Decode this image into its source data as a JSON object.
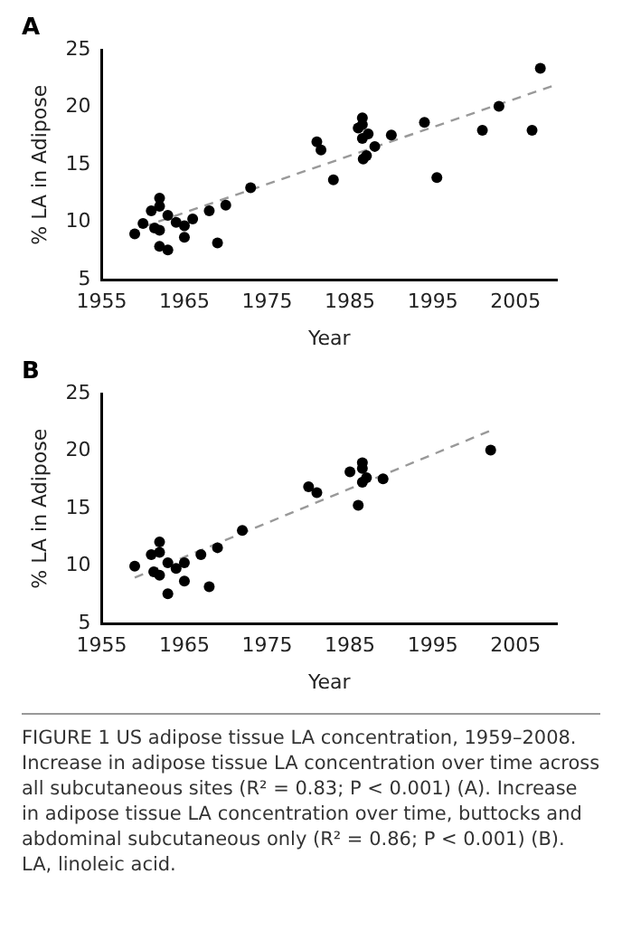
{
  "chart_data": [
    {
      "type": "scatter",
      "title": "A",
      "xlabel": "Year",
      "ylabel": "% LA in Adipose",
      "xlim": [
        1955,
        2010
      ],
      "xticks": [
        1955,
        1965,
        1975,
        1985,
        1995,
        2005
      ],
      "ylim": [
        5,
        25
      ],
      "yticks": [
        5,
        10,
        15,
        20,
        25
      ],
      "grid": false,
      "legend": false,
      "marker": "circle",
      "series": [
        {
          "color": "#000000",
          "x": [
            1959,
            1960,
            1961,
            1961.4,
            1962,
            1962,
            1962,
            1962,
            1963,
            1963,
            1964,
            1965,
            1965,
            1966,
            1968,
            1969,
            1970,
            1973,
            1981,
            1981.5,
            1983,
            1986,
            1986.5,
            1986.5,
            1986.5,
            1986.6,
            1987,
            1987.2,
            1988,
            1990,
            1994,
            1995.5,
            2001,
            2003,
            2007,
            2008
          ],
          "values": [
            9.0,
            9.9,
            11.0,
            9.5,
            12.1,
            11.4,
            9.3,
            7.9,
            10.6,
            7.6,
            10.0,
            9.7,
            8.7,
            10.3,
            11.0,
            8.2,
            11.5,
            13.0,
            17.0,
            16.3,
            13.7,
            18.2,
            19.1,
            18.5,
            17.3,
            15.5,
            15.8,
            17.7,
            16.6,
            17.6,
            18.7,
            13.9,
            18.0,
            20.1,
            18.0,
            23.4
          ]
        },
        {
          "type": "line",
          "color": "#999999",
          "line_style": "dashed",
          "marker": "none",
          "x": [
            1960,
            2010
          ],
          "values": [
            9.6,
            22.0
          ]
        }
      ]
    },
    {
      "type": "scatter",
      "title": "B",
      "xlabel": "Year",
      "ylabel": "% LA in Adipose",
      "xlim": [
        1955,
        2010
      ],
      "xticks": [
        1955,
        1965,
        1975,
        1985,
        1995,
        2005
      ],
      "ylim": [
        5,
        25
      ],
      "yticks": [
        5,
        10,
        15,
        20,
        25
      ],
      "grid": false,
      "legend": false,
      "marker": "circle",
      "annotations": [
        "FIGURE 1   US adipose tissue LA concentration, 1959–2008. Increase in adipose tissue LA concentration over time across all subcutaneous sites (R² = 0.83; P < 0.001) (A). Increase in adipose tissue LA concentration over time, buttocks and abdominal subcutaneous only (R² = 0.86; P < 0.001) (B). LA, linoleic acid."
      ],
      "series": [
        {
          "color": "#000000",
          "x": [
            1959,
            1961,
            1961.3,
            1962,
            1962,
            1962,
            1963,
            1963,
            1964,
            1965,
            1965,
            1967,
            1968,
            1969,
            1972,
            1980,
            1981,
            1985,
            1986.5,
            1986.5,
            1986,
            1986.5,
            1987,
            1989,
            2002
          ],
          "values": [
            10.0,
            11.0,
            9.5,
            12.1,
            11.2,
            9.2,
            10.3,
            7.6,
            9.8,
            10.3,
            8.7,
            11.0,
            8.2,
            11.6,
            13.1,
            16.9,
            16.4,
            18.2,
            19.0,
            18.5,
            15.3,
            17.3,
            17.7,
            17.6,
            20.1
          ]
        },
        {
          "type": "line",
          "color": "#999999",
          "line_style": "dashed",
          "marker": "none",
          "x": [
            1959,
            2002
          ],
          "values": [
            9.0,
            21.8
          ]
        }
      ]
    }
  ]
}
